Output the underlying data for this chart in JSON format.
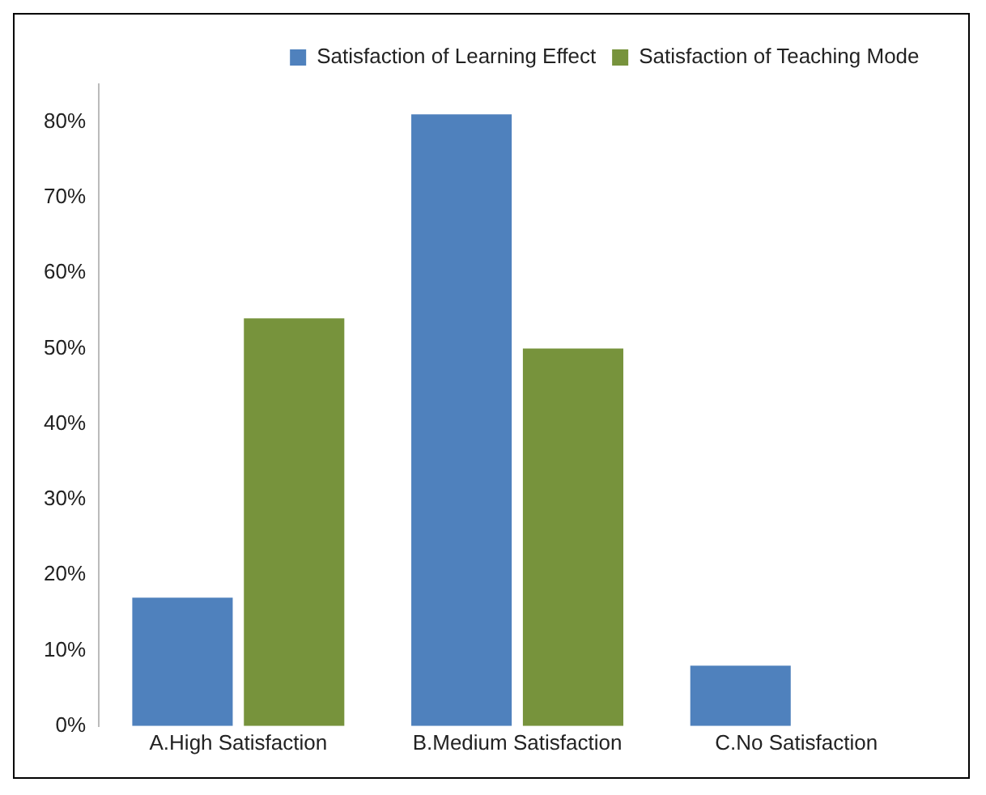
{
  "chart_data": {
    "type": "bar",
    "categories": [
      "A.High Satisfaction",
      "B.Medium Satisfaction",
      "C.No Satisfaction"
    ],
    "series": [
      {
        "name": "Satisfaction of Learning Effect",
        "color": "#4f81bd",
        "values": [
          17,
          81,
          8
        ]
      },
      {
        "name": "Satisfaction of Teaching Mode",
        "color": "#77933c",
        "values": [
          54,
          50,
          0
        ]
      }
    ],
    "ylim": [
      0,
      85
    ],
    "yticks": [
      {
        "value": 0,
        "label": "0%"
      },
      {
        "value": 10,
        "label": "10%"
      },
      {
        "value": 20,
        "label": "20%"
      },
      {
        "value": 30,
        "label": "30%"
      },
      {
        "value": 40,
        "label": "40%"
      },
      {
        "value": 50,
        "label": "50%"
      },
      {
        "value": 60,
        "label": "60%"
      },
      {
        "value": 70,
        "label": "70%"
      },
      {
        "value": 80,
        "label": "80%"
      }
    ],
    "grid": false,
    "legend": "top right"
  }
}
